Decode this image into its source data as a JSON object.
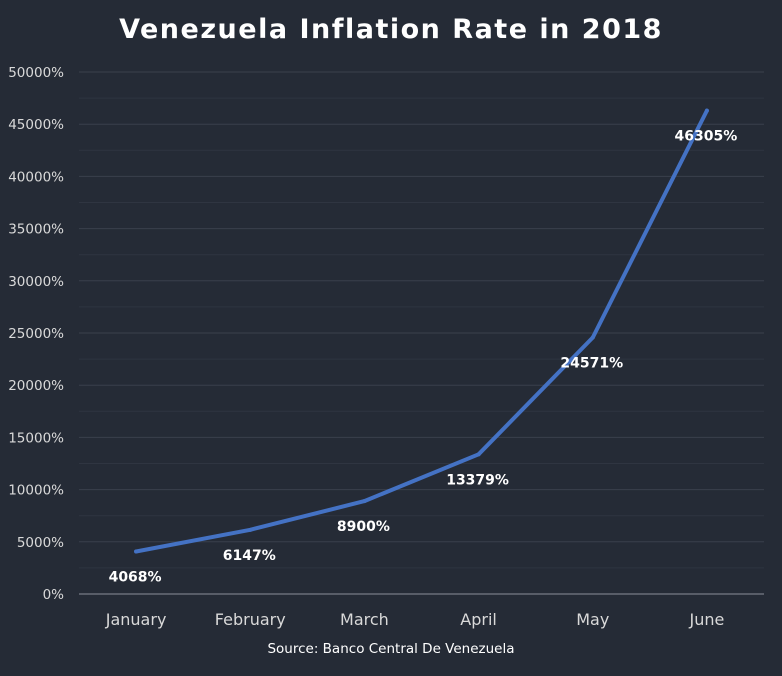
{
  "chart_data": {
    "type": "line",
    "title": "Venezuela Inflation Rate in 2018",
    "source": "Source: Banco Central De Venezuela",
    "categories": [
      "January",
      "February",
      "March",
      "April",
      "May",
      "June"
    ],
    "series": [
      {
        "values": [
          4068,
          6147,
          8900,
          13379,
          24571,
          46305
        ],
        "labels": [
          "4068%",
          "6147%",
          "8900%",
          "13379%",
          "24571%",
          "46305%"
        ],
        "color": "#4472c4"
      }
    ],
    "ylim": [
      0,
      50000
    ],
    "yticks": [
      0,
      5000,
      10000,
      15000,
      20000,
      25000,
      30000,
      35000,
      40000,
      45000,
      50000
    ],
    "ytick_labels": [
      "0%",
      "5000%",
      "10000%",
      "15000%",
      "20000%",
      "25000%",
      "30000%",
      "35000%",
      "40000%",
      "45000%",
      "50000%"
    ],
    "grid": true,
    "legend": "none"
  },
  "colors": {
    "background": "#252b36",
    "text": "#ffffff",
    "axis_text": "#d9d9d9",
    "gridline": "#3a404c",
    "line": "#4472c4"
  }
}
